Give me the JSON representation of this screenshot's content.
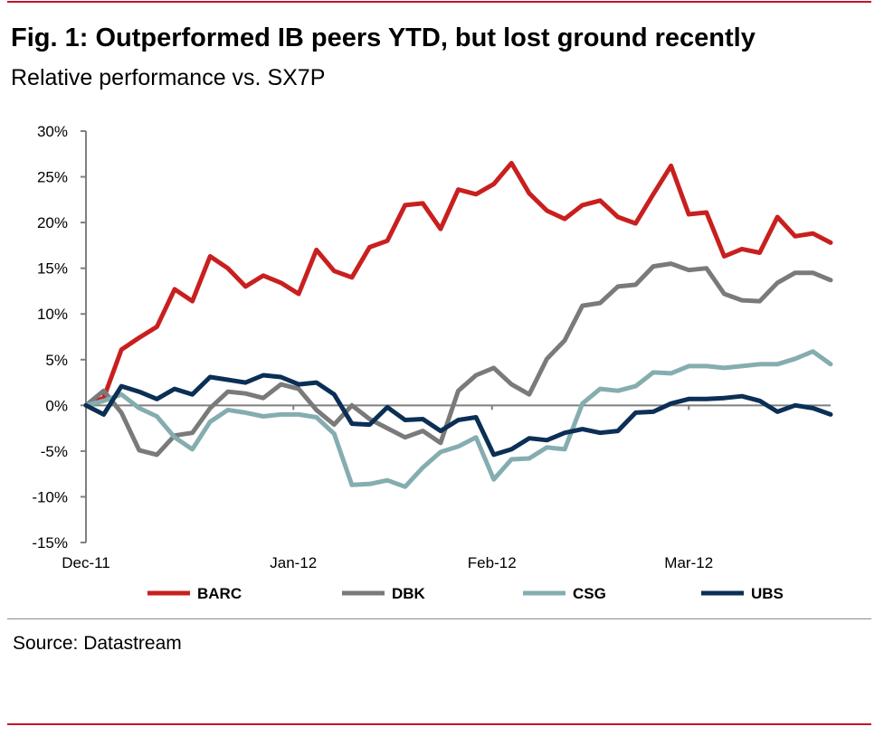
{
  "header": {
    "title": "Fig. 1:  Outperformed IB peers YTD, but lost ground recently",
    "subtitle": "Relative performance vs. SX7P"
  },
  "footer": {
    "source": "Source: Datastream"
  },
  "colors": {
    "accent_rule": "#c8102e",
    "divider": "#8c8c8c"
  },
  "chart_data": {
    "type": "line",
    "title": "Fig. 1:  Outperformed IB peers YTD, but lost ground recently",
    "subtitle": "Relative performance vs. SX7P",
    "xlabel": "",
    "ylabel": "",
    "ylim": [
      -15,
      30
    ],
    "y_ticks": [
      30,
      25,
      20,
      15,
      10,
      5,
      0,
      -5,
      -10,
      -15
    ],
    "y_tick_labels": [
      "30%",
      "25%",
      "20%",
      "15%",
      "10%",
      "5%",
      "0%",
      "-5%",
      "-10%",
      "-15%"
    ],
    "x_range": [
      0,
      42
    ],
    "x_ticks": [
      {
        "label": "Dec-11",
        "index": 0
      },
      {
        "label": "Jan-12",
        "index": 11.7
      },
      {
        "label": "Feb-12",
        "index": 22.9
      },
      {
        "label": "Mar-12",
        "index": 34
      }
    ],
    "grid": false,
    "legend_position": "bottom",
    "series": [
      {
        "name": "BARC",
        "color": "#c8201f",
        "values": [
          0,
          0.8,
          6.1,
          7.4,
          8.6,
          12.7,
          11.4,
          16.3,
          15.0,
          13.0,
          14.2,
          13.4,
          12.2,
          17.0,
          14.7,
          14.0,
          17.3,
          18.0,
          21.9,
          22.1,
          19.3,
          23.6,
          23.1,
          24.2,
          26.5,
          23.2,
          21.3,
          20.4,
          21.9,
          22.4,
          20.6,
          19.9,
          23.1,
          26.2,
          20.9,
          21.1,
          16.3,
          17.1,
          16.7,
          20.6,
          18.5,
          18.8,
          17.8
        ]
      },
      {
        "name": "DBK",
        "color": "#7a7a7a",
        "values": [
          0,
          1.6,
          -0.8,
          -4.9,
          -5.4,
          -3.3,
          -3.0,
          -0.3,
          1.5,
          1.3,
          0.8,
          2.3,
          1.8,
          -0.5,
          -2.1,
          0,
          -1.5,
          -2.5,
          -3.5,
          -2.8,
          -4.1,
          1.6,
          3.3,
          4.1,
          2.3,
          1.2,
          5.1,
          7.1,
          10.9,
          11.2,
          13.0,
          13.2,
          15.2,
          15.5,
          14.8,
          15.0,
          12.2,
          11.5,
          11.4,
          13.4,
          14.5,
          14.5,
          13.7
        ]
      },
      {
        "name": "CSG",
        "color": "#85adb0",
        "values": [
          0,
          0.5,
          1.2,
          -0.3,
          -1.2,
          -3.5,
          -4.8,
          -1.8,
          -0.5,
          -0.8,
          -1.2,
          -1.0,
          -1.0,
          -1.3,
          -3.1,
          -8.7,
          -8.6,
          -8.2,
          -8.9,
          -6.8,
          -5.1,
          -4.5,
          -3.5,
          -8.1,
          -5.9,
          -5.8,
          -4.6,
          -4.8,
          0.2,
          1.8,
          1.6,
          2.1,
          3.6,
          3.5,
          4.3,
          4.3,
          4.1,
          4.3,
          4.5,
          4.5,
          5.1,
          5.9,
          4.5
        ]
      },
      {
        "name": "UBS",
        "color": "#0b2f55",
        "values": [
          0,
          -1.0,
          2.1,
          1.5,
          0.7,
          1.8,
          1.2,
          3.1,
          2.8,
          2.5,
          3.3,
          3.1,
          2.3,
          2.5,
          1.2,
          -2.0,
          -2.1,
          -0.2,
          -1.6,
          -1.5,
          -2.8,
          -1.6,
          -1.3,
          -5.4,
          -4.8,
          -3.6,
          -3.8,
          -3.0,
          -2.6,
          -3.0,
          -2.8,
          -0.8,
          -0.7,
          0.2,
          0.7,
          0.7,
          0.8,
          1.0,
          0.5,
          -0.7,
          0,
          -0.3,
          -1.0
        ]
      }
    ]
  }
}
